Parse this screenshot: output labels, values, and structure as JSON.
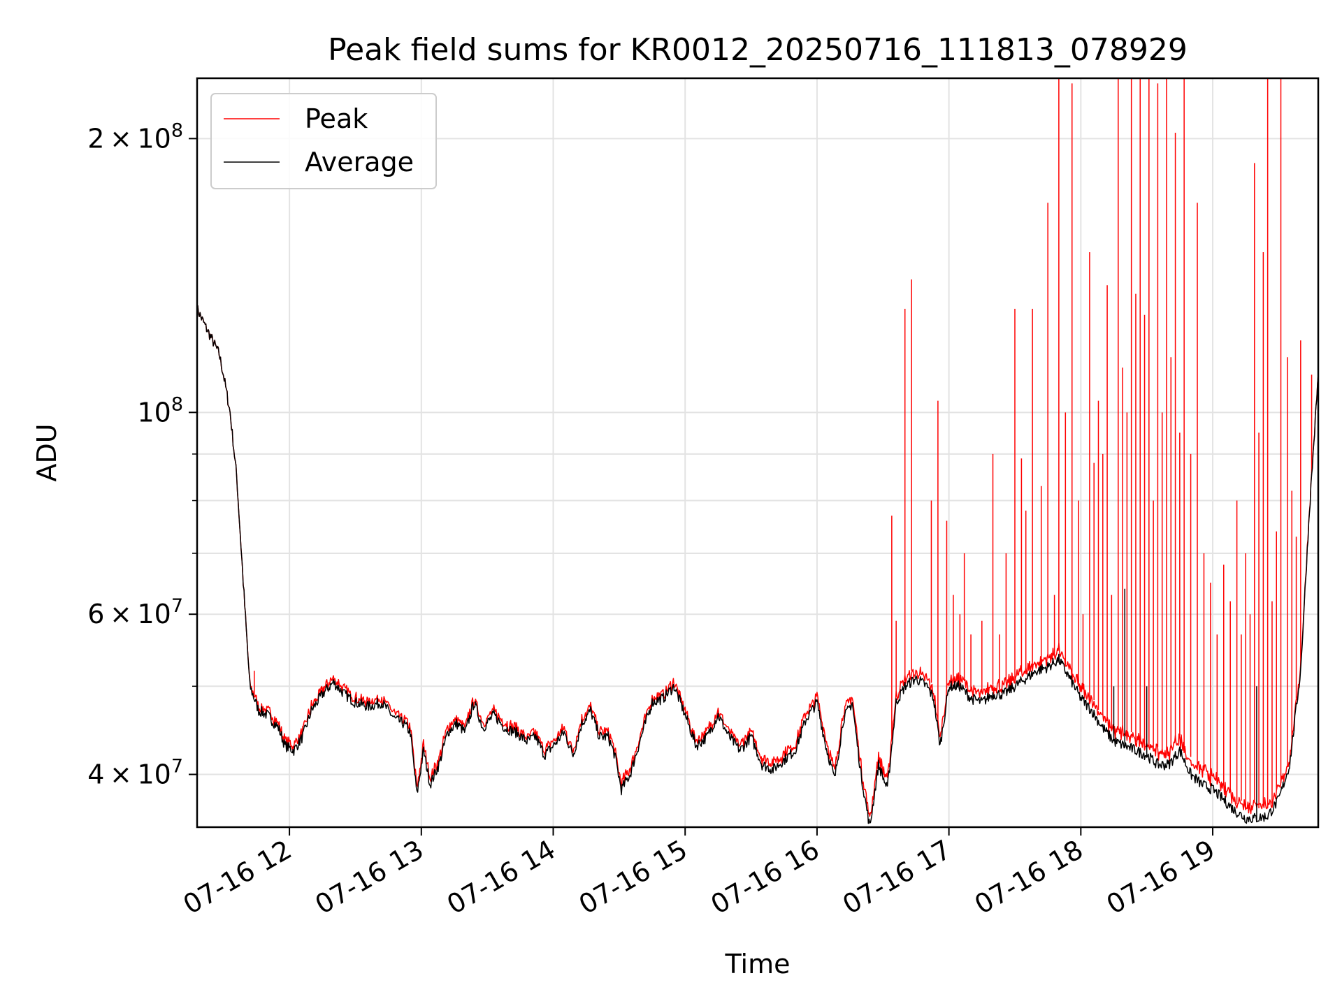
{
  "chart_data": {
    "type": "line",
    "title": "Peak field sums for KR0012_20250716_111813_078929",
    "xlabel": "Time",
    "ylabel": "ADU",
    "y_scale": "log",
    "grid": true,
    "legend_position": "top-left",
    "xlim": [
      "2025-07-16 11:18",
      "2025-07-16 19:48"
    ],
    "ylim": [
      35000000,
      233000000
    ],
    "x_ticks": [
      {
        "value": "2025-07-16 12:00",
        "label": "07-16 12"
      },
      {
        "value": "2025-07-16 13:00",
        "label": "07-16 13"
      },
      {
        "value": "2025-07-16 14:00",
        "label": "07-16 14"
      },
      {
        "value": "2025-07-16 15:00",
        "label": "07-16 15"
      },
      {
        "value": "2025-07-16 16:00",
        "label": "07-16 16"
      },
      {
        "value": "2025-07-16 17:00",
        "label": "07-16 17"
      },
      {
        "value": "2025-07-16 18:00",
        "label": "07-16 18"
      },
      {
        "value": "2025-07-16 19:00",
        "label": "07-16 19"
      }
    ],
    "y_major_ticks": [
      {
        "value": 40000000,
        "mantissa": "4",
        "exponent": "7"
      },
      {
        "value": 60000000,
        "mantissa": "6",
        "exponent": "7"
      },
      {
        "value": 100000000,
        "mantissa": "",
        "exponent": "8"
      },
      {
        "value": 200000000,
        "mantissa": "2",
        "exponent": "8"
      }
    ],
    "y_minor_ticks": [
      50000000,
      70000000,
      80000000,
      90000000
    ],
    "series": [
      {
        "name": "Peak",
        "color": "#ff0000",
        "base_offsets": [
          [
            "11:18",
            0
          ],
          [
            "11:40",
            0
          ],
          [
            "11:45",
            500000
          ],
          [
            "13:00",
            600000
          ],
          [
            "13:40",
            500000
          ],
          [
            "15:30",
            600000
          ],
          [
            "16:00",
            700000
          ],
          [
            "16:40",
            900000
          ],
          [
            "17:20",
            1000000
          ],
          [
            "18:00",
            1200000
          ],
          [
            "18:40",
            1300000
          ],
          [
            "19:20",
            1200000
          ],
          [
            "19:48",
            200000
          ]
        ],
        "spikes": [
          [
            "11:44",
            52000000
          ],
          [
            "16:34",
            77000000
          ],
          [
            "16:36",
            59000000
          ],
          [
            "16:40",
            130000000
          ],
          [
            "16:43",
            140000000
          ],
          [
            "16:52",
            80000000
          ],
          [
            "16:55",
            103000000
          ],
          [
            "16:59",
            76000000
          ],
          [
            "17:02",
            63000000
          ],
          [
            "17:05",
            60000000
          ],
          [
            "17:07",
            70000000
          ],
          [
            "17:10",
            57000000
          ],
          [
            "17:15",
            59000000
          ],
          [
            "17:20",
            90000000
          ],
          [
            "17:23",
            57000000
          ],
          [
            "17:26",
            70000000
          ],
          [
            "17:30",
            130000000
          ],
          [
            "17:33",
            89000000
          ],
          [
            "17:35",
            78000000
          ],
          [
            "17:38",
            130000000
          ],
          [
            "17:42",
            83000000
          ],
          [
            "17:45",
            170000000
          ],
          [
            "17:48",
            63000000
          ],
          [
            "17:50",
            240000000
          ],
          [
            "17:53",
            100000000
          ],
          [
            "17:56",
            230000000
          ],
          [
            "17:59",
            80000000
          ],
          [
            "18:01",
            60000000
          ],
          [
            "18:04",
            150000000
          ],
          [
            "18:06",
            88000000
          ],
          [
            "18:08",
            103000000
          ],
          [
            "18:10",
            90000000
          ],
          [
            "18:12",
            138000000
          ],
          [
            "18:14",
            63000000
          ],
          [
            "18:17",
            240000000
          ],
          [
            "18:19",
            112000000
          ],
          [
            "18:21",
            100000000
          ],
          [
            "18:23",
            240000000
          ],
          [
            "18:25",
            135000000
          ],
          [
            "18:27",
            240000000
          ],
          [
            "18:29",
            128000000
          ],
          [
            "18:31",
            240000000
          ],
          [
            "18:33",
            80000000
          ],
          [
            "18:35",
            230000000
          ],
          [
            "18:37",
            100000000
          ],
          [
            "18:39",
            240000000
          ],
          [
            "18:41",
            115000000
          ],
          [
            "18:43",
            203000000
          ],
          [
            "18:45",
            95000000
          ],
          [
            "18:47",
            240000000
          ],
          [
            "18:50",
            90000000
          ],
          [
            "18:53",
            170000000
          ],
          [
            "18:56",
            70000000
          ],
          [
            "18:59",
            65000000
          ],
          [
            "19:02",
            57000000
          ],
          [
            "19:05",
            68000000
          ],
          [
            "19:08",
            62000000
          ],
          [
            "19:11",
            80000000
          ],
          [
            "19:13",
            57000000
          ],
          [
            "19:15",
            70000000
          ],
          [
            "19:17",
            60000000
          ],
          [
            "19:19",
            188000000
          ],
          [
            "19:21",
            95000000
          ],
          [
            "19:23",
            150000000
          ],
          [
            "19:25",
            240000000
          ],
          [
            "19:27",
            62000000
          ],
          [
            "19:29",
            74000000
          ],
          [
            "19:31",
            240000000
          ],
          [
            "19:34",
            115000000
          ],
          [
            "19:36",
            82000000
          ],
          [
            "19:38",
            73000000
          ],
          [
            "19:40",
            120000000
          ],
          [
            "19:45",
            110000000
          ]
        ]
      },
      {
        "name": "Average",
        "color": "#000000",
        "values": [
          [
            "11:18",
            130000000
          ],
          [
            "11:22",
            124000000
          ],
          [
            "11:25",
            120000000
          ],
          [
            "11:28",
            116000000
          ],
          [
            "11:30",
            110000000
          ],
          [
            "11:33",
            100000000
          ],
          [
            "11:36",
            85000000
          ],
          [
            "11:39",
            65000000
          ],
          [
            "11:42",
            50000000
          ],
          [
            "11:46",
            47000000
          ],
          [
            "11:50",
            46500000
          ],
          [
            "11:55",
            45000000
          ],
          [
            "11:58",
            43000000
          ],
          [
            "12:02",
            42500000
          ],
          [
            "12:06",
            44000000
          ],
          [
            "12:10",
            47000000
          ],
          [
            "12:15",
            49000000
          ],
          [
            "12:20",
            50500000
          ],
          [
            "12:25",
            49000000
          ],
          [
            "12:30",
            48000000
          ],
          [
            "12:36",
            47500000
          ],
          [
            "12:42",
            48000000
          ],
          [
            "12:48",
            46000000
          ],
          [
            "12:52",
            45500000
          ],
          [
            "12:55",
            44500000
          ],
          [
            "12:58",
            38000000
          ],
          [
            "13:01",
            42500000
          ],
          [
            "13:04",
            39000000
          ],
          [
            "13:08",
            41000000
          ],
          [
            "13:12",
            44500000
          ],
          [
            "13:16",
            45500000
          ],
          [
            "13:20",
            44500000
          ],
          [
            "13:24",
            48000000
          ],
          [
            "13:28",
            45000000
          ],
          [
            "13:33",
            46500000
          ],
          [
            "13:38",
            45000000
          ],
          [
            "13:43",
            44500000
          ],
          [
            "13:48",
            43500000
          ],
          [
            "13:52",
            44000000
          ],
          [
            "13:56",
            42000000
          ],
          [
            "14:00",
            43000000
          ],
          [
            "14:05",
            44500000
          ],
          [
            "14:09",
            42000000
          ],
          [
            "14:13",
            45500000
          ],
          [
            "14:17",
            47000000
          ],
          [
            "14:21",
            44000000
          ],
          [
            "14:25",
            44000000
          ],
          [
            "14:28",
            42000000
          ],
          [
            "14:31",
            38500000
          ],
          [
            "14:35",
            40000000
          ],
          [
            "14:40",
            44000000
          ],
          [
            "14:45",
            48000000
          ],
          [
            "14:50",
            48500000
          ],
          [
            "14:55",
            50000000
          ],
          [
            "15:00",
            46500000
          ],
          [
            "15:05",
            43000000
          ],
          [
            "15:10",
            44000000
          ],
          [
            "15:15",
            46500000
          ],
          [
            "15:20",
            44000000
          ],
          [
            "15:25",
            42500000
          ],
          [
            "15:30",
            44000000
          ],
          [
            "15:35",
            41000000
          ],
          [
            "15:40",
            40500000
          ],
          [
            "15:45",
            41500000
          ],
          [
            "15:50",
            42500000
          ],
          [
            "15:55",
            46000000
          ],
          [
            "16:00",
            48000000
          ],
          [
            "16:04",
            43000000
          ],
          [
            "16:08",
            39500000
          ],
          [
            "16:12",
            46000000
          ],
          [
            "16:16",
            48000000
          ],
          [
            "16:20",
            40000000
          ],
          [
            "16:24",
            35000000
          ],
          [
            "16:28",
            41000000
          ],
          [
            "16:32",
            38500000
          ],
          [
            "16:36",
            48000000
          ],
          [
            "16:40",
            50000000
          ],
          [
            "16:45",
            51000000
          ],
          [
            "16:50",
            50000000
          ],
          [
            "16:53",
            48500000
          ],
          [
            "16:56",
            43000000
          ],
          [
            "17:00",
            50000000
          ],
          [
            "17:05",
            50000000
          ],
          [
            "17:10",
            48500000
          ],
          [
            "17:15",
            48000000
          ],
          [
            "17:20",
            49000000
          ],
          [
            "17:25",
            49000000
          ],
          [
            "17:30",
            50000000
          ],
          [
            "17:35",
            51000000
          ],
          [
            "17:40",
            52000000
          ],
          [
            "17:45",
            52500000
          ],
          [
            "17:50",
            53500000
          ],
          [
            "17:55",
            51000000
          ],
          [
            "18:00",
            48500000
          ],
          [
            "18:05",
            47000000
          ],
          [
            "18:10",
            45000000
          ],
          [
            "18:15",
            43500000
          ],
          [
            "18:20",
            43000000
          ],
          [
            "18:25",
            42500000
          ],
          [
            "18:30",
            42000000
          ],
          [
            "18:35",
            41000000
          ],
          [
            "18:40",
            41000000
          ],
          [
            "18:45",
            42500000
          ],
          [
            "18:50",
            40000000
          ],
          [
            "18:55",
            39000000
          ],
          [
            "19:00",
            38500000
          ],
          [
            "19:05",
            37500000
          ],
          [
            "19:10",
            36500000
          ],
          [
            "19:15",
            35800000
          ],
          [
            "19:20",
            35800000
          ],
          [
            "19:25",
            36000000
          ],
          [
            "19:30",
            37500000
          ],
          [
            "19:35",
            41000000
          ],
          [
            "19:40",
            52000000
          ],
          [
            "19:44",
            78000000
          ],
          [
            "19:48",
            110000000
          ]
        ],
        "isolated_spikes": [
          [
            "18:20",
            64000000
          ],
          [
            "18:15",
            50000000
          ],
          [
            "18:30",
            50000000
          ],
          [
            "19:20",
            50000000
          ]
        ]
      }
    ]
  }
}
